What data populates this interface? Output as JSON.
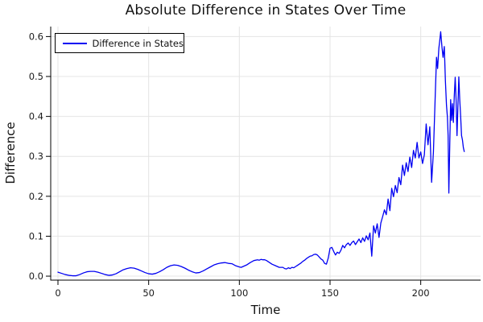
{
  "chart_data": {
    "type": "line",
    "title": "Absolute Difference in States Over Time",
    "xlabel": "Time",
    "ylabel": "Difference",
    "grid": true,
    "xlim": [
      -4,
      233
    ],
    "ylim": [
      -0.01,
      0.625
    ],
    "xticks": {
      "values": [
        0,
        50,
        100,
        150,
        200
      ],
      "labels": [
        "0",
        "50",
        "100",
        "150",
        "200"
      ]
    },
    "yticks": {
      "values": [
        0,
        0.1,
        0.2,
        0.3,
        0.4,
        0.5,
        0.6
      ],
      "labels": [
        "0.0",
        "0.1",
        "0.2",
        "0.3",
        "0.4",
        "0.5",
        "0.6"
      ]
    },
    "colors": {
      "line": "#0000f2",
      "grid": "#e4e4e4",
      "axis": "#000000",
      "tick_text": "#1a1a1a"
    },
    "legend": {
      "position": "top-left",
      "entries": [
        {
          "label": "Difference in States",
          "color": "#0000f2"
        }
      ]
    },
    "series": [
      {
        "name": "Difference in States",
        "color": "#0000f2",
        "points": [
          [
            0,
            0.01
          ],
          [
            2,
            0.007
          ],
          [
            4,
            0.004
          ],
          [
            6,
            0.002
          ],
          [
            8,
            0.001
          ],
          [
            10,
            0.001
          ],
          [
            12,
            0.004
          ],
          [
            14,
            0.008
          ],
          [
            16,
            0.011
          ],
          [
            18,
            0.012
          ],
          [
            20,
            0.012
          ],
          [
            22,
            0.01
          ],
          [
            24,
            0.007
          ],
          [
            26,
            0.004
          ],
          [
            28,
            0.002
          ],
          [
            30,
            0.003
          ],
          [
            32,
            0.006
          ],
          [
            34,
            0.011
          ],
          [
            36,
            0.016
          ],
          [
            38,
            0.019
          ],
          [
            40,
            0.021
          ],
          [
            42,
            0.02
          ],
          [
            44,
            0.017
          ],
          [
            46,
            0.013
          ],
          [
            48,
            0.009
          ],
          [
            50,
            0.006
          ],
          [
            52,
            0.005
          ],
          [
            54,
            0.007
          ],
          [
            56,
            0.011
          ],
          [
            58,
            0.016
          ],
          [
            60,
            0.022
          ],
          [
            62,
            0.026
          ],
          [
            64,
            0.028
          ],
          [
            66,
            0.027
          ],
          [
            68,
            0.024
          ],
          [
            70,
            0.02
          ],
          [
            72,
            0.015
          ],
          [
            74,
            0.011
          ],
          [
            76,
            0.008
          ],
          [
            78,
            0.009
          ],
          [
            80,
            0.013
          ],
          [
            82,
            0.018
          ],
          [
            84,
            0.023
          ],
          [
            86,
            0.028
          ],
          [
            88,
            0.031
          ],
          [
            90,
            0.033
          ],
          [
            92,
            0.034
          ],
          [
            94,
            0.032
          ],
          [
            96,
            0.031
          ],
          [
            98,
            0.026
          ],
          [
            100,
            0.023
          ],
          [
            101,
            0.022
          ],
          [
            102,
            0.024
          ],
          [
            104,
            0.028
          ],
          [
            105,
            0.031
          ],
          [
            106,
            0.034
          ],
          [
            108,
            0.039
          ],
          [
            110,
            0.041
          ],
          [
            111,
            0.04
          ],
          [
            112,
            0.042
          ],
          [
            113,
            0.041
          ],
          [
            114,
            0.041
          ],
          [
            115,
            0.039
          ],
          [
            116,
            0.036
          ],
          [
            118,
            0.03
          ],
          [
            120,
            0.026
          ],
          [
            122,
            0.022
          ],
          [
            124,
            0.022
          ],
          [
            125,
            0.019
          ],
          [
            126,
            0.018
          ],
          [
            127,
            0.021
          ],
          [
            128,
            0.019
          ],
          [
            129,
            0.022
          ],
          [
            130,
            0.021
          ],
          [
            131,
            0.024
          ],
          [
            132,
            0.027
          ],
          [
            133,
            0.03
          ],
          [
            134,
            0.033
          ],
          [
            135,
            0.037
          ],
          [
            136,
            0.04
          ],
          [
            137,
            0.044
          ],
          [
            138,
            0.047
          ],
          [
            139,
            0.05
          ],
          [
            140,
            0.051
          ],
          [
            141,
            0.054
          ],
          [
            142,
            0.055
          ],
          [
            143,
            0.053
          ],
          [
            144,
            0.048
          ],
          [
            145,
            0.043
          ],
          [
            146,
            0.04
          ],
          [
            147,
            0.032
          ],
          [
            148,
            0.03
          ],
          [
            149,
            0.045
          ],
          [
            150,
            0.07
          ],
          [
            151,
            0.072
          ],
          [
            152,
            0.062
          ],
          [
            153,
            0.053
          ],
          [
            154,
            0.06
          ],
          [
            155,
            0.057
          ],
          [
            156,
            0.065
          ],
          [
            157,
            0.077
          ],
          [
            158,
            0.071
          ],
          [
            159,
            0.079
          ],
          [
            160,
            0.083
          ],
          [
            161,
            0.077
          ],
          [
            162,
            0.084
          ],
          [
            163,
            0.088
          ],
          [
            164,
            0.079
          ],
          [
            165,
            0.086
          ],
          [
            166,
            0.093
          ],
          [
            167,
            0.084
          ],
          [
            168,
            0.096
          ],
          [
            169,
            0.087
          ],
          [
            170,
            0.101
          ],
          [
            171,
            0.091
          ],
          [
            172,
            0.108
          ],
          [
            173,
            0.05
          ],
          [
            174,
            0.126
          ],
          [
            175,
            0.108
          ],
          [
            176,
            0.131
          ],
          [
            177,
            0.097
          ],
          [
            178,
            0.133
          ],
          [
            179,
            0.149
          ],
          [
            180,
            0.166
          ],
          [
            181,
            0.154
          ],
          [
            182,
            0.193
          ],
          [
            183,
            0.164
          ],
          [
            184,
            0.22
          ],
          [
            185,
            0.199
          ],
          [
            186,
            0.227
          ],
          [
            187,
            0.209
          ],
          [
            188,
            0.247
          ],
          [
            189,
            0.229
          ],
          [
            190,
            0.278
          ],
          [
            191,
            0.252
          ],
          [
            192,
            0.284
          ],
          [
            193,
            0.262
          ],
          [
            194,
            0.298
          ],
          [
            195,
            0.272
          ],
          [
            196,
            0.315
          ],
          [
            197,
            0.296
          ],
          [
            198,
            0.335
          ],
          [
            199,
            0.296
          ],
          [
            200,
            0.311
          ],
          [
            201,
            0.282
          ],
          [
            202,
            0.304
          ],
          [
            203,
            0.381
          ],
          [
            204,
            0.329
          ],
          [
            205,
            0.374
          ],
          [
            206,
            0.235
          ],
          [
            207,
            0.311
          ],
          [
            208,
            0.452
          ],
          [
            208.7,
            0.548
          ],
          [
            209.3,
            0.52
          ],
          [
            210,
            0.571
          ],
          [
            210.5,
            0.59
          ],
          [
            211,
            0.612
          ],
          [
            211.7,
            0.574
          ],
          [
            212.3,
            0.548
          ],
          [
            213,
            0.575
          ],
          [
            213.6,
            0.489
          ],
          [
            214.2,
            0.428
          ],
          [
            214.7,
            0.399
          ],
          [
            215.1,
            0.352
          ],
          [
            215.5,
            0.208
          ],
          [
            216,
            0.329
          ],
          [
            216.5,
            0.442
          ],
          [
            217,
            0.39
          ],
          [
            217.5,
            0.432
          ],
          [
            218,
            0.385
          ],
          [
            218.5,
            0.452
          ],
          [
            219,
            0.498
          ],
          [
            219.5,
            0.441
          ],
          [
            220,
            0.352
          ],
          [
            220.5,
            0.425
          ],
          [
            221,
            0.499
          ],
          [
            221.5,
            0.443
          ],
          [
            222,
            0.401
          ],
          [
            222.5,
            0.352
          ],
          [
            223,
            0.341
          ],
          [
            223.5,
            0.322
          ],
          [
            224,
            0.312
          ]
        ]
      }
    ]
  }
}
